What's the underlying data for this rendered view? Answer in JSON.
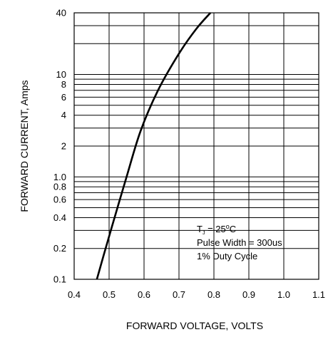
{
  "chart_data": {
    "type": "line",
    "title": "",
    "xlabel": "FORWARD VOLTAGE, VOLTS",
    "ylabel": "FORWARD CURRENT, Amps",
    "xlim": [
      0.4,
      1.1
    ],
    "ylim": [
      0.1,
      40
    ],
    "yscale": "log",
    "grid": true,
    "legend": "none",
    "x_ticks": [
      "0.4",
      "0.5",
      "0.6",
      "0.7",
      "0.8",
      "0.9",
      "1.0",
      "1.1"
    ],
    "y_ticks": [
      {
        "value": 0.1,
        "label": "0.1"
      },
      {
        "value": 0.2,
        "label": "0.2"
      },
      {
        "value": 0.4,
        "label": "0.4"
      },
      {
        "value": 0.6,
        "label": "0.6"
      },
      {
        "value": 0.8,
        "label": "0.8"
      },
      {
        "value": 1.0,
        "label": "1.0"
      },
      {
        "value": 2,
        "label": "2"
      },
      {
        "value": 4,
        "label": "4"
      },
      {
        "value": 6,
        "label": "6"
      },
      {
        "value": 8,
        "label": "8"
      },
      {
        "value": 10,
        "label": "10"
      },
      {
        "value": 40,
        "label": "40"
      }
    ],
    "series": [
      {
        "x": [
          0.465,
          0.49,
          0.52,
          0.55,
          0.59,
          0.64,
          0.7,
          0.75,
          0.79
        ],
        "y": [
          0.1,
          0.2,
          0.45,
          1.0,
          2.8,
          7.0,
          16,
          28,
          40
        ]
      }
    ],
    "annotation": {
      "line1_prefix": "T",
      "line1_sub": "J",
      "line1_mid": " = 25",
      "line1_sup": "o",
      "line1_suffix": "C",
      "line2": "Pulse Width = 300us",
      "line3": "1% Duty Cycle"
    },
    "colors": {
      "grid": "#000000",
      "curve": "#000000",
      "background": "#ffffff"
    }
  }
}
